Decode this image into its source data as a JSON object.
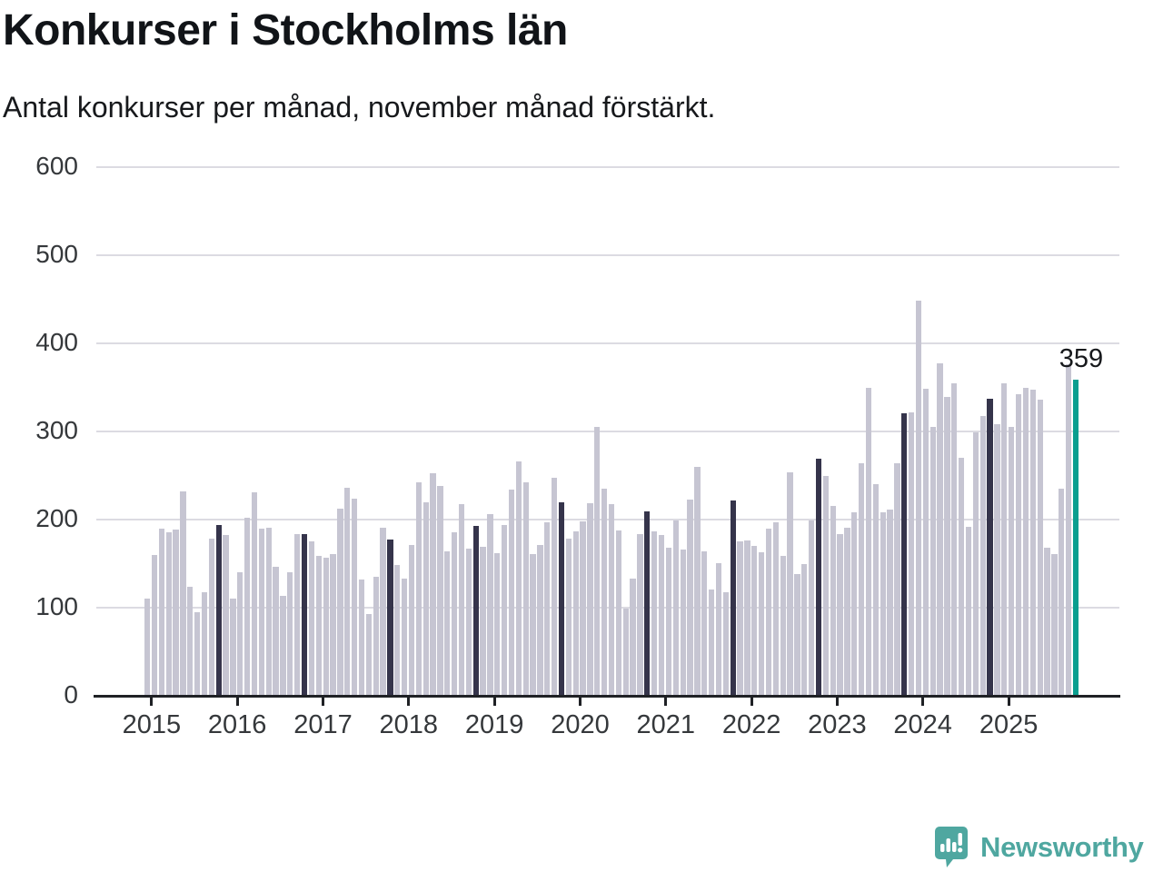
{
  "title": "Konkurser i Stockholms län",
  "subtitle": "Antal konkurser per månad, november månad förstärkt.",
  "annotation_label": "359",
  "logo_text": "Newsworthy",
  "colors": {
    "bar_light": "#c6c5d2",
    "bar_dark": "#35344b",
    "bar_highlight": "#0a9e8f",
    "logo_teal": "#4fa7a0",
    "axis": "#1f2125",
    "gridline": "#dcdbe2",
    "tick_text": "#35383b"
  },
  "chart_data": {
    "type": "bar",
    "title": "Konkurser i Stockholms län",
    "subtitle": "Antal konkurser per månad, november månad förstärkt.",
    "xlabel": "",
    "ylabel": "Antal konkurser per månad",
    "ylim": [
      0,
      600
    ],
    "yticks": [
      0,
      100,
      200,
      300,
      400,
      500,
      600
    ],
    "x_tick_labels": [
      "2015",
      "2016",
      "2017",
      "2018",
      "2019",
      "2020",
      "2021",
      "2022",
      "2023",
      "2024",
      "2025"
    ],
    "grid": true,
    "legend": false,
    "highlight_rule": "every November bar dark; final bar (November 2025) teal with data label",
    "annotated_point": {
      "month": "november 2025",
      "value": 359
    },
    "series": [
      {
        "year": 2015,
        "monthly_values": [
          110,
          160,
          190,
          186,
          189,
          232,
          124,
          95,
          118,
          178,
          194,
          182
        ]
      },
      {
        "year": 2016,
        "monthly_values": [
          110,
          140,
          202,
          231,
          190,
          191,
          146,
          113,
          140,
          183,
          184,
          175
        ]
      },
      {
        "year": 2017,
        "monthly_values": [
          159,
          157,
          161,
          212,
          236,
          224,
          132,
          93,
          135,
          191,
          177,
          148
        ]
      },
      {
        "year": 2018,
        "monthly_values": [
          133,
          171,
          242,
          220,
          253,
          238,
          164,
          186,
          218,
          167,
          193,
          169
        ]
      },
      {
        "year": 2019,
        "monthly_values": [
          206,
          162,
          194,
          234,
          266,
          242,
          161,
          171,
          197,
          247,
          220,
          178
        ]
      },
      {
        "year": 2020,
        "monthly_values": [
          187,
          198,
          219,
          305,
          235,
          218,
          188,
          99,
          133,
          184,
          209,
          187
        ]
      },
      {
        "year": 2021,
        "monthly_values": [
          182,
          168,
          199,
          166,
          223,
          260,
          164,
          121,
          151,
          118,
          222,
          175
        ]
      },
      {
        "year": 2022,
        "monthly_values": [
          176,
          170,
          163,
          190,
          197,
          159,
          254,
          138,
          150,
          199,
          269,
          249
        ]
      },
      {
        "year": 2023,
        "monthly_values": [
          215,
          184,
          191,
          208,
          264,
          349,
          240,
          208,
          211,
          264,
          321,
          322
        ]
      },
      {
        "year": 2024,
        "monthly_values": [
          448,
          348,
          305,
          377,
          339,
          355,
          270,
          192,
          299,
          318,
          337,
          308
        ]
      },
      {
        "year": 2025,
        "monthly_values": [
          355,
          305,
          342,
          350,
          347,
          336,
          168,
          161,
          235,
          376,
          359
        ]
      }
    ]
  }
}
